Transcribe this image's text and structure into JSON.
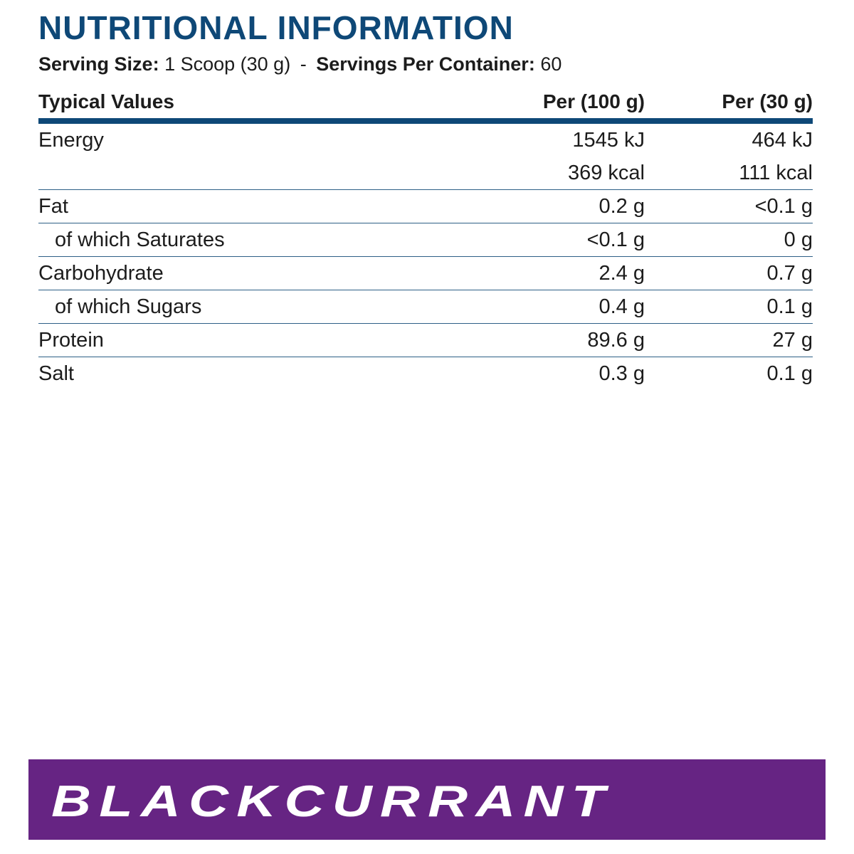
{
  "title": "NUTRITIONAL INFORMATION",
  "serving": {
    "size_label": "Serving Size:",
    "size_value": "1 Scoop (30 g)",
    "separator": "-",
    "per_container_label": "Servings Per Container:",
    "per_container_value": "60"
  },
  "table": {
    "headers": [
      "Typical Values",
      "Per (100 g)",
      "Per (30 g)"
    ],
    "rows": [
      [
        "Energy",
        [
          "1545 kJ",
          "369 kcal"
        ],
        [
          "464 kJ",
          "111 kcal"
        ]
      ],
      [
        "Fat",
        "0.2 g",
        "<0.1 g"
      ],
      [
        "of which Saturates",
        "<0.1 g",
        "0 g"
      ],
      [
        "Carbohydrate",
        "2.4 g",
        "0.7 g"
      ],
      [
        "of which Sugars",
        "0.4 g",
        "0.1 g"
      ],
      [
        "Protein",
        "89.6 g",
        "27 g"
      ],
      [
        "Salt",
        "0.3 g",
        "0.1 g"
      ]
    ]
  },
  "flavor": "BLACKCURRANT"
}
